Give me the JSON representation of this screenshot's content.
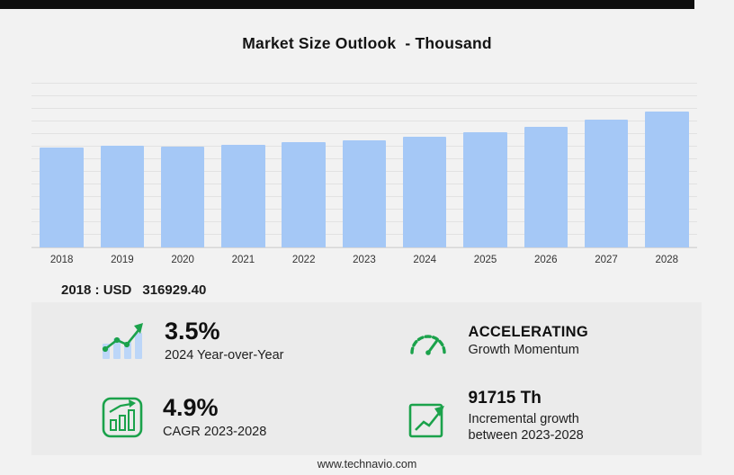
{
  "page": {
    "title": "Market Size Outlook  - Thousand",
    "footer": "www.technavio.com"
  },
  "baseline": {
    "label": "2018 : USD",
    "value": "316929.40"
  },
  "chart_data": {
    "type": "bar",
    "title": "Market Size Outlook - Thousand",
    "unit": "USD Thousand",
    "categories": [
      "2018",
      "2019",
      "2020",
      "2021",
      "2022",
      "2023",
      "2024",
      "2025",
      "2026",
      "2027",
      "2028"
    ],
    "values": [
      316929.4,
      322400,
      319000,
      324500,
      332700,
      339182,
      351053,
      365100,
      382600,
      404800,
      430897
    ],
    "ylim": [
      0,
      530000
    ],
    "grid": true,
    "legend": "none",
    "bar_color": "#a5c8f6",
    "xlabel": "",
    "ylabel": ""
  },
  "stats": [
    {
      "value": "3.5%",
      "label": "2024 Year-over-Year",
      "icon": "bar-growth-icon"
    },
    {
      "value": "ACCELERATING",
      "label": "Growth Momentum",
      "icon": "speedometer-icon"
    },
    {
      "value": "4.9%",
      "label": "CAGR 2023-2028",
      "icon": "cagr-chart-icon"
    },
    {
      "value": "91715 Th",
      "label": "Incremental growth between 2023-2028",
      "icon": "incremental-growth-icon"
    }
  ],
  "colors": {
    "accent_green": "#1ba24b",
    "bar_blue": "#a5c8f6",
    "panel_bg": "#ebebeb",
    "page_bg": "#f2f2f2",
    "top_bar": "#0e0e0e"
  }
}
